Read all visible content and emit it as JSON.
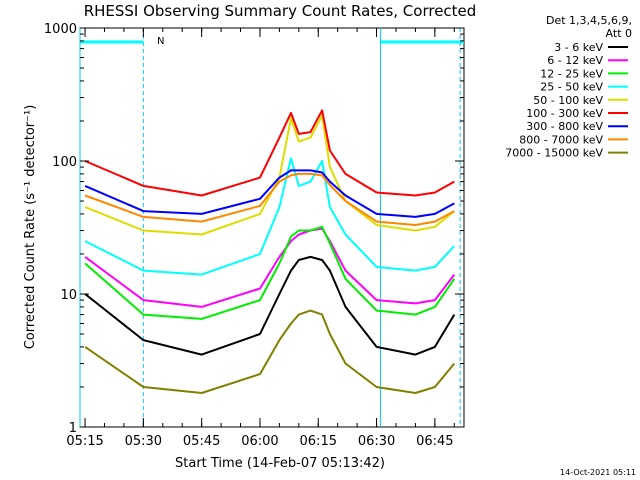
{
  "chart_data": {
    "type": "line",
    "title": "RHESSI Observing Summary Count Rates, Corrected",
    "ylabel": "Corrected Count Rate (s⁻¹ detector⁻¹)",
    "xlabel": "Start Time (14-Feb-07 05:13:42)",
    "y_scale": "log",
    "ylim": [
      1,
      1000
    ],
    "xlim": [
      "05:13:42",
      "06:52:30"
    ],
    "x_ticks": [
      "05:15",
      "05:30",
      "05:45",
      "06:00",
      "06:15",
      "06:30",
      "06:45"
    ],
    "y_ticks": [
      "1",
      "10",
      "100",
      "1000"
    ],
    "legend_header": [
      "Det 1,3,4,5,6,9,",
      "Att 0"
    ],
    "legend_placement": "right outside",
    "timestamp": "14-Oct-2021 05:11",
    "annotation_flag": "N",
    "x": [
      "05:15",
      "05:30",
      "05:45",
      "06:00",
      "06:05",
      "06:08",
      "06:10",
      "06:13",
      "06:16",
      "06:18",
      "06:22",
      "06:30",
      "06:40",
      "06:45",
      "06:50"
    ],
    "series": [
      {
        "name": "3 - 6 keV",
        "color": "#000000",
        "values": [
          10,
          4.5,
          3.5,
          5,
          10,
          15,
          18,
          19,
          18,
          15,
          8,
          4,
          3.5,
          4,
          7
        ]
      },
      {
        "name": "6 - 12 keV",
        "color": "#ff00ff",
        "values": [
          19,
          9,
          8,
          11,
          19,
          25,
          28,
          30,
          31,
          25,
          15,
          9,
          8.5,
          9,
          14
        ]
      },
      {
        "name": "12 - 25 keV",
        "color": "#00ee00",
        "values": [
          17,
          7,
          6.5,
          9,
          17,
          27,
          30,
          30,
          32,
          24,
          13,
          7.5,
          7,
          8,
          13
        ]
      },
      {
        "name": "25 - 50 keV",
        "color": "#00ffff",
        "values": [
          25,
          15,
          14,
          20,
          45,
          105,
          65,
          70,
          100,
          45,
          28,
          16,
          15,
          16,
          23
        ]
      },
      {
        "name": "50 - 100 keV",
        "color": "#dddd00",
        "values": [
          45,
          30,
          28,
          40,
          75,
          210,
          140,
          150,
          220,
          90,
          50,
          33,
          30,
          32,
          42
        ]
      },
      {
        "name": "100 - 300 keV",
        "color": "#ff0000",
        "values": [
          100,
          65,
          55,
          75,
          150,
          230,
          160,
          165,
          240,
          120,
          80,
          58,
          55,
          58,
          70
        ]
      },
      {
        "name": "300 - 800 keV",
        "color": "#0000ff",
        "values": [
          65,
          42,
          40,
          52,
          75,
          85,
          85,
          85,
          82,
          70,
          55,
          40,
          38,
          40,
          48
        ]
      },
      {
        "name": "800 - 7000 keV",
        "color": "#ff8800",
        "values": [
          55,
          38,
          35,
          46,
          70,
          78,
          80,
          80,
          78,
          66,
          50,
          35,
          33,
          35,
          42
        ]
      },
      {
        "name": "7000 - 15000 keV",
        "color": "#808000",
        "values": [
          4,
          2,
          1.8,
          2.5,
          4.5,
          6,
          7,
          7.5,
          7,
          5,
          3,
          2,
          1.8,
          2,
          3
        ]
      }
    ],
    "bars": [
      {
        "from": "05:13:42",
        "to": "05:30:00",
        "color": "#00ffff"
      },
      {
        "from": "06:31:00",
        "to": "06:52:30",
        "color": "#00ffff"
      }
    ],
    "vlines": [
      {
        "at": "05:13:42",
        "style": "solid"
      },
      {
        "at": "05:30:00",
        "style": "dashed"
      },
      {
        "at": "06:31:00",
        "style": "solid"
      },
      {
        "at": "06:51:30",
        "style": "dashed"
      }
    ]
  }
}
